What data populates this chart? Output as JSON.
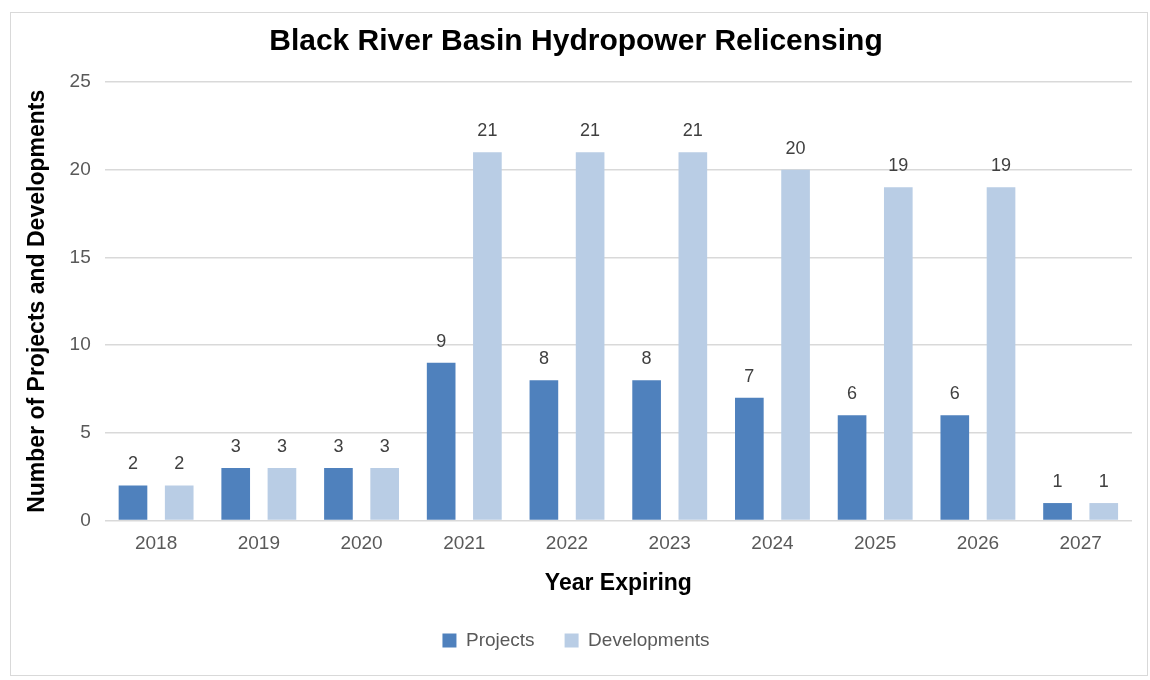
{
  "chart_data": {
    "type": "bar",
    "title": "Black River Basin Hydropower Relicensing",
    "xlabel": "Year Expiring",
    "ylabel": "Number of Projects and Developments",
    "categories": [
      "2018",
      "2019",
      "2020",
      "2021",
      "2022",
      "2023",
      "2024",
      "2025",
      "2026",
      "2027"
    ],
    "series": [
      {
        "name": "Projects",
        "color": "#4f81bd",
        "values": [
          2,
          3,
          3,
          9,
          8,
          8,
          7,
          6,
          6,
          1
        ]
      },
      {
        "name": "Developments",
        "color": "#b9cde5",
        "values": [
          2,
          3,
          3,
          21,
          21,
          21,
          20,
          19,
          19,
          1
        ]
      }
    ],
    "ylim": [
      0,
      25
    ],
    "yticks": [
      0,
      5,
      10,
      15,
      20,
      25
    ],
    "grid": "y",
    "legend": "bottom",
    "data_labels": true
  }
}
